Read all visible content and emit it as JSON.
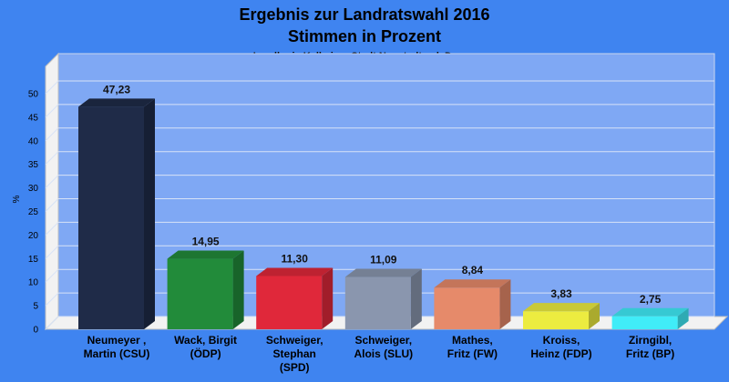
{
  "chart_data": {
    "type": "bar",
    "title": "Ergebnis zur Landratswahl 2016",
    "title2": "Stimmen in Prozent",
    "subtitle": "Landkreis Kelheim - Stadt Neustadt a.d. Donau",
    "ylabel": "%",
    "xlabel": "",
    "ylim": [
      0,
      50
    ],
    "yticks": [
      0,
      5,
      10,
      15,
      20,
      25,
      30,
      35,
      40,
      45,
      50
    ],
    "grid": true,
    "categories": [
      [
        "Neumeyer ,",
        "Martin (CSU)"
      ],
      [
        "Wack, Birgit",
        "(ÖDP)"
      ],
      [
        "Schweiger,",
        "Stephan",
        "(SPD)"
      ],
      [
        "Schweiger,",
        "Alois (SLU)"
      ],
      [
        "Mathes,",
        "Fritz (FW)"
      ],
      [
        "Kroiss,",
        "Heinz (FDP)"
      ],
      [
        "Zirngibl,",
        "Fritz (BP)"
      ]
    ],
    "values": [
      47.23,
      14.95,
      11.3,
      11.09,
      8.84,
      3.83,
      2.75
    ],
    "value_labels": [
      "47,23",
      "14,95",
      "11,30",
      "11,09",
      "8,84",
      "3,83",
      "2,75"
    ],
    "colors": [
      "#1f2b48",
      "#228b3a",
      "#e0283a",
      "#8a96ae",
      "#e68a6a",
      "#ecec40",
      "#40ecf8"
    ],
    "background_color": "#3f84f0",
    "plot_color": "#7fa8f4"
  }
}
